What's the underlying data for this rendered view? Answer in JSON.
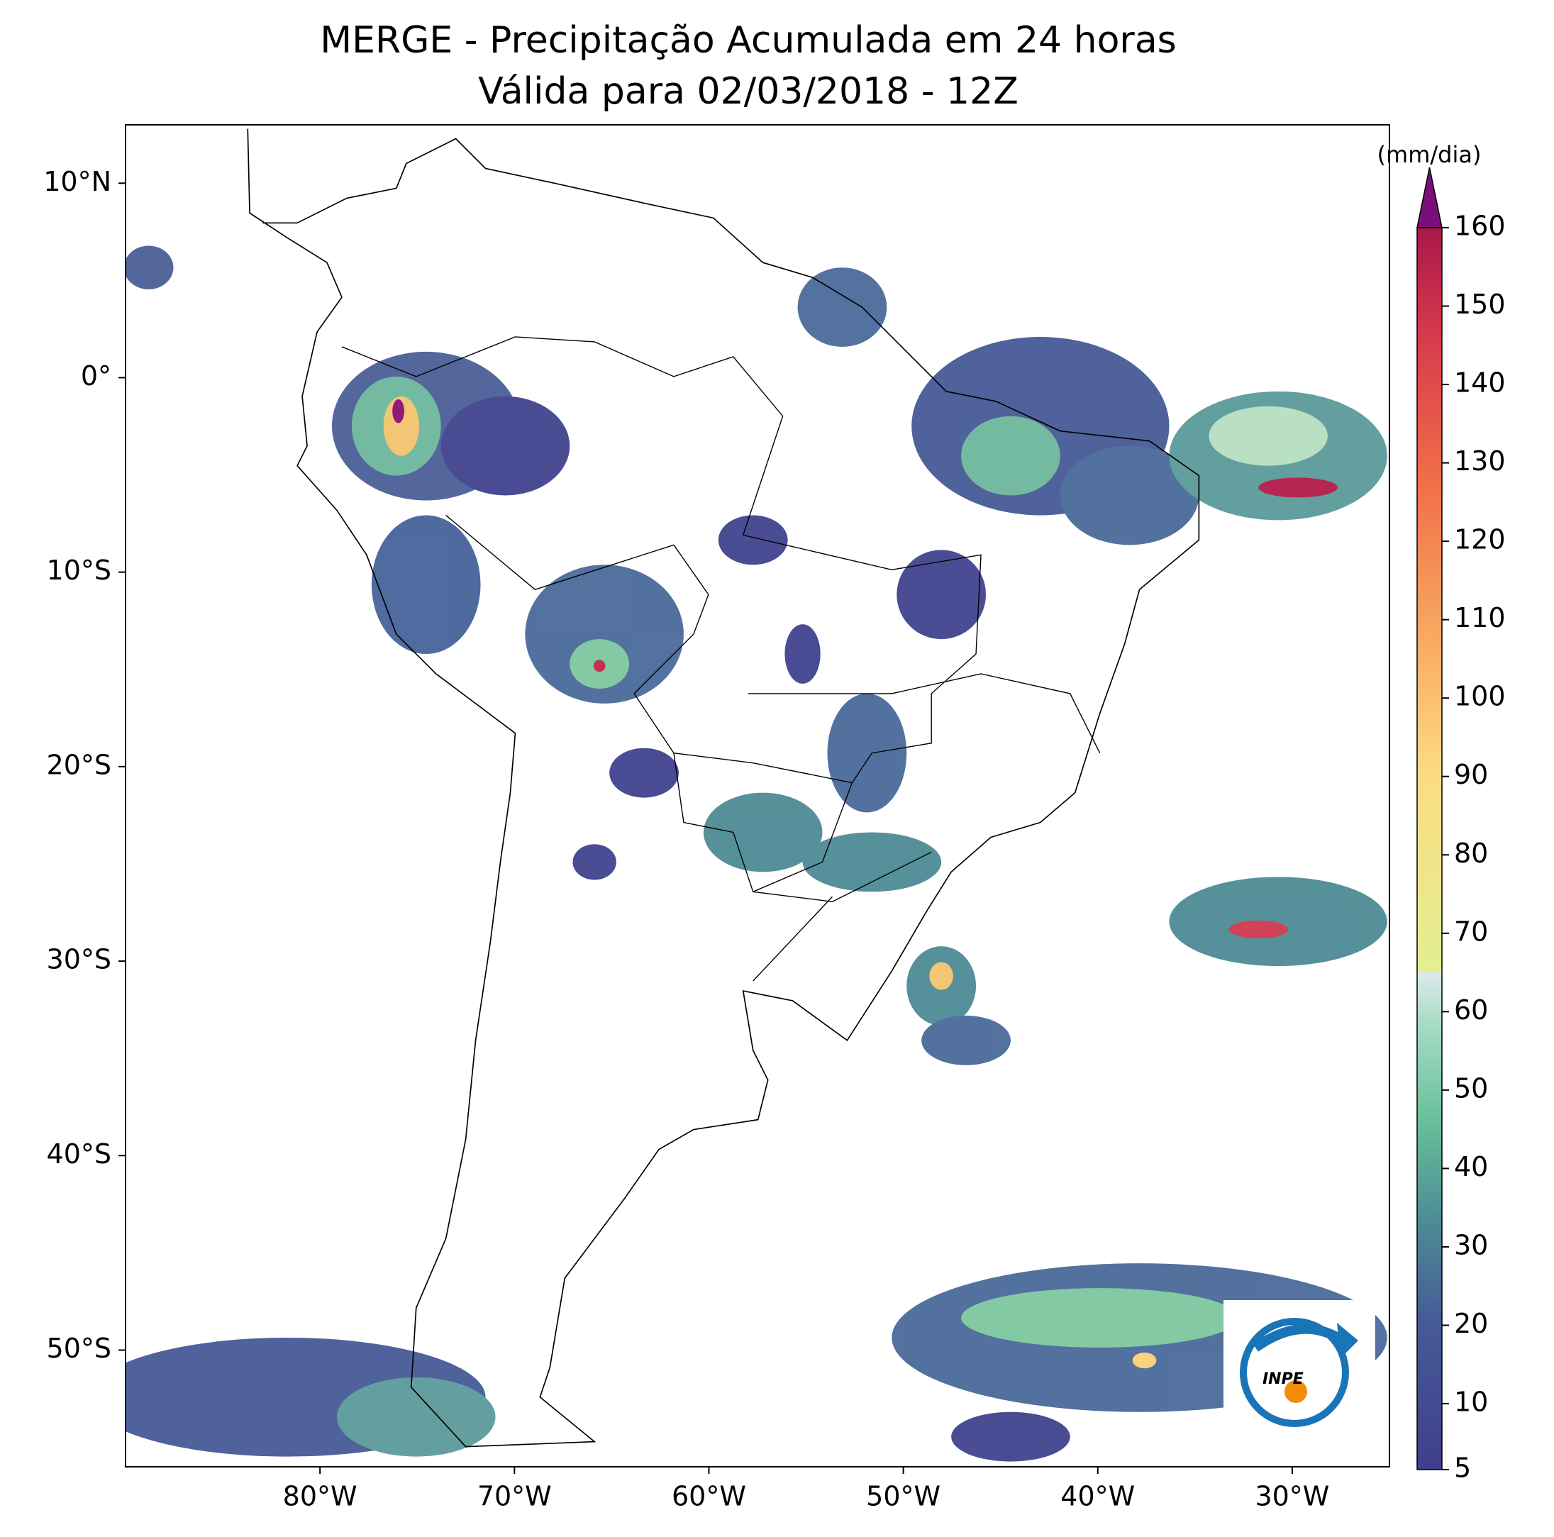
{
  "title": [
    "MERGE - Precipitação Acumulada em 24 horas",
    "Válida para 02/03/2018 - 12Z"
  ],
  "map": {
    "xlim": [
      -90,
      -25
    ],
    "ylim": [
      -56,
      13
    ],
    "xticks": [
      {
        "value": -80,
        "label": "80°W"
      },
      {
        "value": -70,
        "label": "70°W"
      },
      {
        "value": -60,
        "label": "60°W"
      },
      {
        "value": -50,
        "label": "50°W"
      },
      {
        "value": -40,
        "label": "40°W"
      },
      {
        "value": -30,
        "label": "30°W"
      }
    ],
    "yticks": [
      {
        "value": 10,
        "label": "10°N"
      },
      {
        "value": 0,
        "label": "0°"
      },
      {
        "value": -10,
        "label": "10°S"
      },
      {
        "value": -20,
        "label": "20°S"
      },
      {
        "value": -30,
        "label": "30°S"
      },
      {
        "value": -40,
        "label": "40°S"
      },
      {
        "value": -50,
        "label": "50°S"
      }
    ]
  },
  "colorbar": {
    "label": "(mm/dia)",
    "lim": [
      5,
      160
    ],
    "ticks": [
      5,
      10,
      20,
      30,
      40,
      50,
      60,
      70,
      80,
      90,
      100,
      110,
      120,
      130,
      140,
      150,
      160
    ]
  },
  "logo": "INPE"
}
